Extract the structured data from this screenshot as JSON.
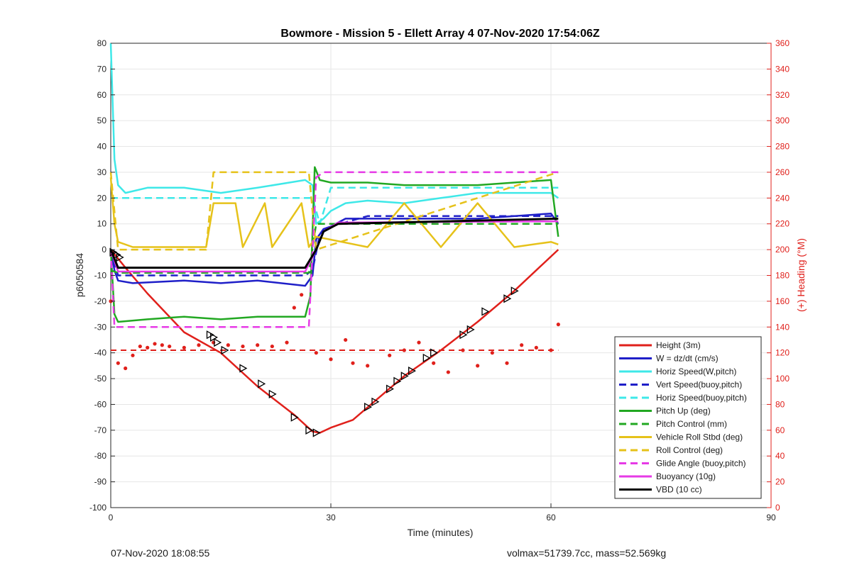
{
  "footer": {
    "timestamp": "07-Nov-2020 18:08:55",
    "stats": "volmax=51739.7cc, mass=52.569kg"
  },
  "chart_data": {
    "type": "line",
    "title": "Bowmore - Mission 5 - Ellett Array 4 07-Nov-2020 17:54:06Z",
    "xlabel": "Time (minutes)",
    "ylabel": "p6050584",
    "y2label": "(+) Heading (°M)",
    "xlim": [
      0,
      90
    ],
    "ylim": [
      -100,
      80
    ],
    "y2lim": [
      0,
      360
    ],
    "xticks": [
      0,
      30,
      60,
      90
    ],
    "yticks": [
      80,
      70,
      60,
      50,
      40,
      30,
      20,
      10,
      0,
      -10,
      -20,
      -30,
      -40,
      -50,
      -60,
      -70,
      -80,
      -90,
      -100
    ],
    "y2ticks": [
      360,
      340,
      320,
      300,
      280,
      260,
      240,
      220,
      200,
      180,
      160,
      140,
      120,
      100,
      80,
      60,
      40,
      20,
      0
    ],
    "grid": true,
    "legend_position": "bottom-right",
    "legend": [
      {
        "name": "Height (3m)",
        "color": "#e0201b",
        "style": "solid"
      },
      {
        "name": "W = dz/dt (cm/s)",
        "color": "#1f1fc8",
        "style": "solid"
      },
      {
        "name": "Horiz Speed(W,pitch)",
        "color": "#3ee8e8",
        "style": "solid"
      },
      {
        "name": "Vert Speed(buoy,pitch)",
        "color": "#1f1fc8",
        "style": "dashed"
      },
      {
        "name": "Horiz Speed(buoy,pitch)",
        "color": "#3ee8e8",
        "style": "dashed"
      },
      {
        "name": "Pitch Up (deg)",
        "color": "#22a822",
        "style": "solid"
      },
      {
        "name": "Pitch Control (mm)",
        "color": "#22a822",
        "style": "dashed"
      },
      {
        "name": "Vehicle Roll Stbd (deg)",
        "color": "#e6c21a",
        "style": "solid"
      },
      {
        "name": "Roll Control (deg)",
        "color": "#e6c21a",
        "style": "dashed"
      },
      {
        "name": "Glide Angle (buoy,pitch)",
        "color": "#e63ae6",
        "style": "dashed"
      },
      {
        "name": "Buoyancy (10g)",
        "color": "#e63ae6",
        "style": "solid"
      },
      {
        "name": "VBD (10 cc)",
        "color": "#000000",
        "style": "solid"
      }
    ],
    "series": [
      {
        "name": "Height (3m)",
        "axis": "left",
        "x": [
          0,
          2,
          5,
          10,
          15,
          20,
          25,
          27.5,
          28.5,
          30,
          33,
          40,
          45,
          50,
          55,
          61
        ],
        "y": [
          0,
          -7,
          -17,
          -32,
          -40,
          -53,
          -64,
          -70.5,
          -71,
          -69,
          -66,
          -49,
          -39,
          -28,
          -16,
          0
        ]
      },
      {
        "name": "W = dz/dt (cm/s)",
        "axis": "left",
        "x": [
          0,
          0.5,
          1,
          3,
          10,
          15,
          20,
          26.5,
          27.5,
          28,
          29,
          30,
          32,
          35,
          40,
          50,
          60,
          61
        ],
        "y": [
          0,
          -8,
          -12,
          -13,
          -12,
          -13,
          -12,
          -14,
          -10,
          4,
          8,
          9,
          12,
          12,
          12,
          12,
          14,
          10
        ]
      },
      {
        "name": "Horiz Speed(W,pitch)",
        "axis": "left",
        "x": [
          0,
          0.5,
          1,
          2,
          5,
          10,
          15,
          20,
          26.5,
          27.5,
          28,
          29,
          30,
          32,
          35,
          40,
          45,
          50,
          55,
          60,
          61
        ],
        "y": [
          80,
          35,
          25,
          22,
          24,
          24,
          22,
          24,
          27,
          25,
          10,
          12,
          15,
          18,
          19,
          18,
          20,
          22,
          22,
          22,
          20
        ]
      },
      {
        "name": "Vert Speed(buoy,pitch)",
        "axis": "left",
        "x": [
          0,
          1,
          26.5,
          27.5,
          28.5,
          30,
          35,
          60,
          61
        ],
        "y": [
          0,
          -10,
          -10,
          -8,
          6,
          9,
          13,
          13,
          13
        ]
      },
      {
        "name": "Horiz Speed(buoy,pitch)",
        "axis": "left",
        "x": [
          0,
          1,
          26.5,
          27.5,
          28.5,
          30,
          61
        ],
        "y": [
          20,
          20,
          20,
          20,
          10,
          24,
          24
        ]
      },
      {
        "name": "Pitch Up (deg)",
        "axis": "left",
        "x": [
          0,
          0.5,
          1,
          5,
          10,
          15,
          20,
          26.5,
          27.2,
          27.8,
          28.5,
          30,
          35,
          40,
          45,
          50,
          55,
          60,
          61
        ],
        "y": [
          0,
          -25,
          -28,
          -27,
          -26,
          -27,
          -26,
          -26,
          -18,
          32,
          27,
          26,
          26,
          25,
          25,
          25,
          26,
          27,
          5
        ]
      },
      {
        "name": "Pitch Control (mm)",
        "axis": "left",
        "x": [
          0,
          1,
          27,
          28,
          61
        ],
        "y": [
          -8,
          -9,
          -9,
          10,
          10
        ]
      },
      {
        "name": "Vehicle Roll Stbd (deg)",
        "axis": "left",
        "x": [
          0,
          0.5,
          1,
          3,
          10,
          13,
          14,
          17,
          18,
          21,
          22,
          26,
          27,
          28,
          35,
          40,
          45,
          50,
          55,
          60,
          61
        ],
        "y": [
          28,
          10,
          3,
          1,
          1,
          1,
          18,
          18,
          1,
          18,
          1,
          18,
          1,
          5,
          1,
          18,
          1,
          18,
          1,
          3,
          2
        ]
      },
      {
        "name": "Roll Control (deg)",
        "axis": "left",
        "x": [
          0,
          1,
          3,
          13,
          14,
          27,
          28,
          61
        ],
        "y": [
          30,
          0,
          0,
          0,
          30,
          30,
          0,
          30
        ]
      },
      {
        "name": "Glide Angle (buoy,pitch)",
        "axis": "left",
        "x": [
          0,
          0.5,
          1,
          27,
          28,
          29,
          30,
          61
        ],
        "y": [
          0,
          -30,
          -30,
          -30,
          28,
          30,
          30,
          30
        ]
      },
      {
        "name": "Buoyancy (10g)",
        "axis": "left",
        "x": [
          0,
          1,
          26.5,
          28,
          29,
          31,
          61
        ],
        "y": [
          0,
          -8.5,
          -8.5,
          0,
          7,
          10.5,
          11
        ]
      },
      {
        "name": "VBD (10 cc)",
        "axis": "left",
        "x": [
          0,
          1,
          26.5,
          28,
          29,
          31,
          61
        ],
        "y": [
          0,
          -7,
          -7,
          0,
          7,
          10,
          12
        ]
      },
      {
        "name": "Heading",
        "axis": "right",
        "type": "scatter",
        "x": [
          0,
          1,
          2,
          3,
          4,
          5,
          6,
          7,
          8,
          10,
          12,
          14,
          16,
          18,
          20,
          22,
          24,
          25,
          26,
          28,
          30,
          32,
          33,
          35,
          38,
          40,
          42,
          44,
          46,
          48,
          50,
          52,
          54,
          56,
          58,
          60,
          61
        ],
        "y": [
          160,
          112,
          108,
          118,
          125,
          124,
          127,
          126,
          125,
          124,
          126,
          128,
          126,
          125,
          126,
          125,
          128,
          155,
          165,
          120,
          115,
          130,
          112,
          110,
          118,
          122,
          128,
          112,
          105,
          122,
          110,
          120,
          112,
          126,
          124,
          122,
          142
        ]
      }
    ],
    "reference_lines": [
      {
        "axis": "right",
        "y": 122,
        "color": "#e0201b",
        "style": "dashed"
      }
    ],
    "markers": {
      "symbol": "triangle",
      "x": [
        0.3,
        0.8,
        1.2,
        13.5,
        14,
        14.5,
        15.5,
        18,
        20.5,
        22,
        25,
        27,
        28,
        35,
        36,
        38,
        39,
        40,
        41,
        43,
        44,
        48,
        49,
        51,
        54,
        55
      ],
      "y": [
        -1,
        -2,
        -3,
        -33,
        -34,
        -36,
        -39,
        -46,
        -52,
        -56,
        -65,
        -70,
        -71,
        -61,
        -59,
        -54,
        -51,
        -49,
        -47,
        -42,
        -40,
        -33,
        -31,
        -24,
        -19,
        -16
      ]
    }
  }
}
